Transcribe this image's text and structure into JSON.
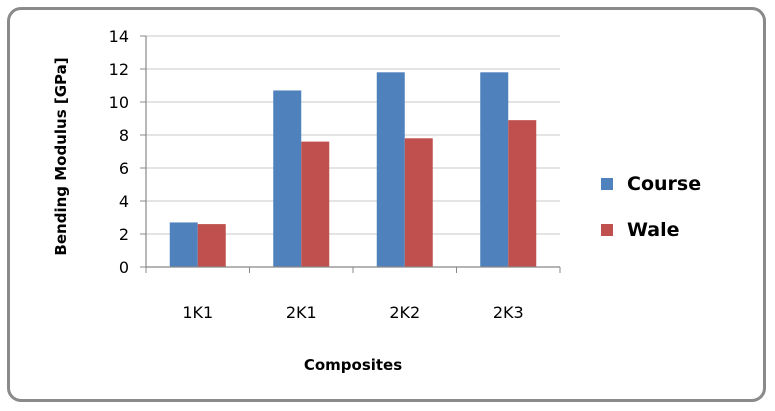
{
  "chart_data": {
    "type": "bar",
    "categories": [
      "1K1",
      "2K1",
      "2K2",
      "2K3"
    ],
    "series": [
      {
        "name": "Course",
        "values": [
          2.7,
          10.7,
          11.8,
          11.8
        ],
        "color": "#4f81bd"
      },
      {
        "name": "Wale",
        "values": [
          2.6,
          7.6,
          7.8,
          8.9
        ],
        "color": "#c0504d"
      }
    ],
    "xlabel": "Composites",
    "ylabel": "Bending Modulus  [GPa]",
    "ylim": [
      0,
      14
    ],
    "yticks": [
      0,
      2,
      4,
      6,
      8,
      10,
      12,
      14
    ],
    "grid": true,
    "legend_position": "right",
    "gridline_color": "#c8c8c8"
  }
}
